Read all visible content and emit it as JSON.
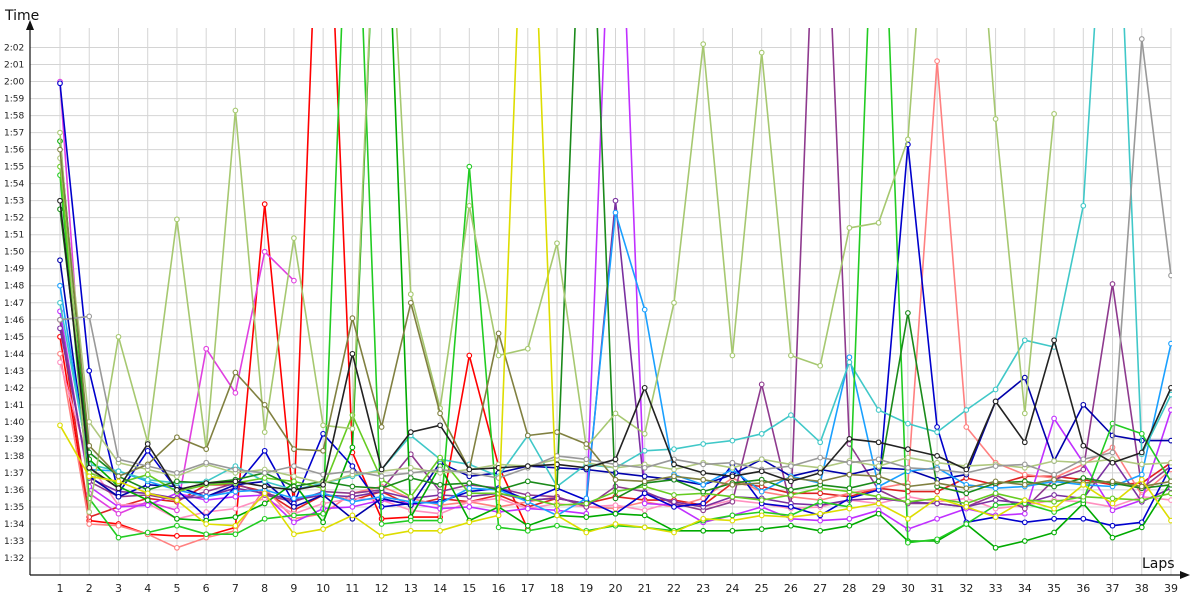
{
  "chart_data": {
    "type": "line",
    "xlabel": "Laps",
    "ylabel": "Time",
    "grid": true,
    "xlim": [
      1,
      39
    ],
    "ylim": [
      91,
      123.5
    ],
    "x_ticks": [
      "1",
      "2",
      "3",
      "4",
      "5",
      "6",
      "7",
      "8",
      "9",
      "10",
      "11",
      "12",
      "13",
      "14",
      "15",
      "16",
      "17",
      "18",
      "19",
      "20",
      "21",
      "22",
      "23",
      "24",
      "25",
      "26",
      "27",
      "28",
      "29",
      "30",
      "31",
      "32",
      "33",
      "34",
      "35",
      "36",
      "37",
      "38",
      "39"
    ],
    "y_ticks": [
      {
        "label": "1:32",
        "value": 92
      },
      {
        "label": "1:33",
        "value": 93
      },
      {
        "label": "1:34",
        "value": 94
      },
      {
        "label": "1:35",
        "value": 95
      },
      {
        "label": "1:36",
        "value": 96
      },
      {
        "label": "1:37",
        "value": 97
      },
      {
        "label": "1:38",
        "value": 98
      },
      {
        "label": "1:39",
        "value": 99
      },
      {
        "label": "1:40",
        "value": 100
      },
      {
        "label": "1:41",
        "value": 101
      },
      {
        "label": "1:42",
        "value": 102
      },
      {
        "label": "1:43",
        "value": 103
      },
      {
        "label": "1:44",
        "value": 104
      },
      {
        "label": "1:45",
        "value": 105
      },
      {
        "label": "1:46",
        "value": 106
      },
      {
        "label": "1:47",
        "value": 107
      },
      {
        "label": "1:48",
        "value": 108
      },
      {
        "label": "1:49",
        "value": 109
      },
      {
        "label": "1:50",
        "value": 110
      },
      {
        "label": "1:51",
        "value": 111
      },
      {
        "label": "1:52",
        "value": 112
      },
      {
        "label": "1:53",
        "value": 113
      },
      {
        "label": "1:54",
        "value": 114
      },
      {
        "label": "1:55",
        "value": 115
      },
      {
        "label": "1:56",
        "value": 116
      },
      {
        "label": "1:57",
        "value": 117
      },
      {
        "label": "1:58",
        "value": 118
      },
      {
        "label": "1:59",
        "value": 119
      },
      {
        "label": "2:00",
        "value": 120
      },
      {
        "label": "2:01",
        "value": 121
      },
      {
        "label": "2:02",
        "value": 122
      }
    ],
    "series": [
      {
        "color": "#ff0000",
        "values": [
          105.0,
          94.2,
          94.0,
          93.4,
          93.3,
          93.3,
          93.8,
          112.8,
          95.0,
          140,
          98.2,
          94.3,
          94.4,
          94.4,
          103.9,
          97.4,
          93.7,
          null,
          null,
          null,
          null,
          null,
          null,
          null,
          null,
          null,
          null,
          null,
          null,
          null,
          null,
          null,
          null,
          null,
          null,
          null,
          null,
          null,
          null
        ]
      },
      {
        "color": "#dd2222",
        "values": [
          106.0,
          94.4,
          95.0,
          95.5,
          95.3,
          96.3,
          96.3,
          95.9,
          94.8,
          95.7,
          95.4,
          95.9,
          95.1,
          95.5,
          95.3,
          95.7,
          95.0,
          95.5,
          95.2,
          95.6,
          95.4,
          95.4,
          95.1,
          96.4,
          96.2,
          95.8,
          95.8,
          95.6,
          96.1,
          95.9,
          95.9,
          96.7,
          96.3,
          96.8,
          96.8,
          96.6,
          96.3,
          96.4,
          97.6
        ]
      },
      {
        "color": "#ff8080",
        "values": [
          104.0,
          94.0,
          93.9,
          93.4,
          92.6,
          93.2,
          93.6,
          96.1,
          94.3,
          94.6,
          95.8,
          96.2,
          95.5,
          95.1,
          95.3,
          95.0,
          95.3,
          95.6,
          95.0,
          94.9,
          95.3,
          95.0,
          95.5,
          96.7,
          95.9,
          95.6,
          95.4,
          95.8,
          96.1,
          96.4,
          121.2,
          99.7,
          97.6,
          96.9,
          96.7,
          97.5,
          98.5,
          95.7,
          97.2
        ]
      },
      {
        "color": "#ff90c0",
        "values": [
          103.5,
          97.5,
          95.1,
          95.2,
          94.3,
          94.7,
          94.9,
          95.5,
          94.6,
          95.2,
          95.5,
          95.4,
          94.8,
          94.6,
          95.3,
          95.5,
          94.9,
          95.2,
          95.0,
          95.1,
          94.8,
          95.3,
          95.0,
          95.4,
          95.2,
          94.9,
          95.0,
          95.4,
          95.2,
          95.6,
          95.3,
          95.5,
          94.9,
          95.1,
          95.4,
          95.3,
          95.0,
          95.6,
          95.4
        ]
      },
      {
        "color": "#e040e0",
        "values": [
          120.0,
          95.8,
          94.6,
          95.3,
          94.8,
          104.3,
          101.7,
          110.0,
          108.3,
          null,
          null,
          null,
          null,
          null,
          null,
          null,
          null,
          null,
          null,
          null,
          null,
          null,
          null,
          null,
          null,
          null,
          null,
          null,
          null,
          null,
          null,
          null,
          null,
          null,
          null,
          null,
          null,
          null,
          null
        ]
      },
      {
        "color": "#c030ff",
        "values": [
          106.5,
          96.2,
          95.0,
          95.1,
          95.8,
          95.4,
          95.6,
          95.7,
          94.1,
          94.9,
          95.0,
          95.4,
          95.2,
          94.9,
          95.0,
          94.7,
          94.9,
          94.8,
          94.6,
          140,
          95.2,
          95.1,
          94.1,
          94.5,
          95.0,
          94.3,
          94.2,
          94.3,
          94.8,
          93.7,
          94.3,
          94.9,
          94.5,
          94.6,
          100.2,
          97.6,
          94.8,
          95.4,
          100.7
        ]
      },
      {
        "color": "#8e3a8e",
        "values": [
          106.0,
          96.5,
          95.6,
          95.7,
          95.4,
          95.9,
          96.4,
          95.7,
          95.3,
          95.9,
          95.8,
          96.0,
          98.1,
          95.9,
          96.3,
          96.1,
          95.7,
          95.6,
          95.0,
          96.2,
          95.9,
          95.2,
          94.8,
          95.3,
          102.2,
          95.0,
          140,
          98.7,
          96.0,
          95.2,
          95.2,
          95.0,
          95.7,
          94.9,
          96.6,
          97.2,
          108.1,
          96.1,
          97.4
        ]
      },
      {
        "color": "#7a30a0",
        "values": [
          105.5,
          96.7,
          95.9,
          95.8,
          95.5,
          95.6,
          96.1,
          95.8,
          95.4,
          95.7,
          95.6,
          95.9,
          95.5,
          95.7,
          95.6,
          95.8,
          95.4,
          95.5,
          95.2,
          113.0,
          95.8,
          95.3,
          95.0,
          95.6,
          95.5,
          95.2,
          95.1,
          95.4,
          95.5,
          95.3,
          95.2,
          95.0,
          95.4,
          95.2,
          95.7,
          95.5,
          97.8,
          95.3,
          96.1
        ]
      },
      {
        "color": "#0000cc",
        "values": [
          119.9,
          103.0,
          95.8,
          98.3,
          96.0,
          94.4,
          96.2,
          98.3,
          95.2,
          99.3,
          97.4,
          95.0,
          95.2,
          95.3,
          95.9,
          96.1,
          95.4,
          96.1,
          95.4,
          94.6,
          95.8,
          95.0,
          95.2,
          97.5,
          95.2,
          95.0,
          94.5,
          95.5,
          96.0,
          116.3,
          99.7,
          94.1,
          94.4,
          94.1,
          94.3,
          94.3,
          93.9,
          94.1,
          97.4
        ]
      },
      {
        "color": "#0000aa",
        "values": [
          109.5,
          96.8,
          95.6,
          96.3,
          96.2,
          95.6,
          96.3,
          96.5,
          95.0,
          95.7,
          94.3,
          95.5,
          95.1,
          97.6,
          96.8,
          97.0,
          97.4,
          97.3,
          97.2,
          97.0,
          96.8,
          96.6,
          96.3,
          96.9,
          97.8,
          96.8,
          97.2,
          96.9,
          97.3,
          97.2,
          96.6,
          96.9,
          101.2,
          102.6,
          97.7,
          101.0,
          99.2,
          98.9,
          98.9
        ]
      },
      {
        "color": "#1aa0ff",
        "values": [
          108.0,
          97.2,
          97.1,
          96.5,
          96.0,
          95.6,
          95.9,
          96.0,
          95.5,
          95.8,
          95.3,
          95.6,
          95.3,
          95.2,
          96.1,
          96.0,
          95.3,
          94.5,
          95.5,
          112.3,
          106.6,
          96.9,
          96.3,
          97.2,
          95.9,
          96.8,
          96.4,
          103.8,
          96.2,
          97.1,
          97.3,
          96.3,
          96.1,
          96.2,
          96.5,
          96.3,
          96.2,
          96.9,
          104.6
        ]
      },
      {
        "color": "#40c8c8",
        "values": [
          107.0,
          97.5,
          97.1,
          96.6,
          96.4,
          96.5,
          97.4,
          96.5,
          96.0,
          96.4,
          96.8,
          97.2,
          99.2,
          97.8,
          97.5,
          96.8,
          99.2,
          96.2,
          97.5,
          97.3,
          98.3,
          98.4,
          98.7,
          98.9,
          99.3,
          100.4,
          98.8,
          103.5,
          100.7,
          99.9,
          99.4,
          100.7,
          101.9,
          104.8,
          104.4,
          112.7,
          140,
          98.1,
          101.6
        ]
      },
      {
        "color": "#00aa00",
        "values": [
          116.5,
          97.8,
          96.2,
          95.4,
          94.3,
          94.2,
          94.4,
          95.2,
          96.4,
          94.1,
          98.5,
          140,
          94.4,
          97.4,
          94.2,
          95.0,
          93.9,
          94.5,
          94.4,
          94.6,
          94.5,
          93.6,
          93.6,
          93.6,
          93.7,
          93.9,
          93.6,
          93.9,
          94.6,
          93.0,
          93.0,
          94.0,
          92.6,
          93.0,
          93.5,
          95.2,
          93.2,
          93.8,
          96.5
        ]
      },
      {
        "color": "#22cc22",
        "values": [
          114.5,
          95.5,
          93.2,
          93.5,
          93.9,
          93.4,
          93.4,
          94.3,
          94.5,
          94.6,
          140,
          94.0,
          94.2,
          94.2,
          115.0,
          93.8,
          93.6,
          93.9,
          93.6,
          93.9,
          93.8,
          93.6,
          94.2,
          94.5,
          94.7,
          94.5,
          95.3,
          95.0,
          140,
          92.9,
          93.1,
          94.0,
          95.1,
          95.2,
          94.7,
          95.4,
          99.9,
          99.3,
          96.5
        ]
      },
      {
        "color": "#66cc22",
        "values": [
          115.0,
          97.0,
          96.4,
          96.9,
          95.9,
          96.3,
          96.4,
          96.7,
          96.5,
          96.1,
          100.4,
          96.6,
          95.6,
          97.9,
          95.8,
          95.8,
          95.5,
          95.1,
          95.2,
          95.9,
          96.2,
          95.7,
          95.8,
          95.6,
          95.4,
          95.7,
          96.1,
          95.9,
          95.6,
          95.3,
          95.5,
          95.2,
          95.8,
          95.4,
          95.3,
          95.6,
          95.5,
          95.4,
          95.8
        ]
      },
      {
        "color": "#1a8a1a",
        "values": [
          112.5,
          98.2,
          96.8,
          96.0,
          96.5,
          96.4,
          96.6,
          97.0,
          96.2,
          96.5,
          96.2,
          96.1,
          96.7,
          96.3,
          96.4,
          96.0,
          96.5,
          96.2,
          140,
          95.5,
          96.4,
          96.6,
          95.9,
          96.4,
          96.6,
          96.0,
          96.3,
          96.1,
          96.5,
          106.4,
          96.2,
          95.8,
          96.4,
          96.5,
          96.2,
          96.7,
          96.4,
          96.1,
          96.3
        ]
      },
      {
        "color": "#a6c870",
        "values": [
          117.0,
          94.7,
          105.0,
          98.8,
          111.9,
          98.4,
          118.3,
          99.4,
          110.8,
          99.8,
          99.6,
          140,
          107.5,
          100.8,
          112.7,
          103.9,
          104.3,
          110.5,
          98.5,
          100.5,
          99.3,
          107.0,
          122.2,
          103.9,
          121.7,
          103.9,
          103.3,
          111.4,
          111.7,
          116.6,
          140,
          140,
          117.8,
          100.5,
          118.1,
          null,
          null,
          null,
          null
        ]
      },
      {
        "color": "#b0c880",
        "values": [
          115.5,
          100.0,
          97.6,
          97.2,
          96.8,
          97.5,
          97.0,
          97.2,
          96.8,
          96.4,
          96.9,
          97.1,
          97.3,
          97.0,
          97.2,
          97.5,
          97.4,
          97.8,
          97.6,
          97.3,
          97.5,
          97.2,
          97.6,
          97.3,
          97.8,
          97.5,
          97.3,
          97.7,
          97.4,
          97.9,
          97.6,
          97.4,
          97.5,
          97.3,
          97.7,
          97.6,
          97.8,
          97.5,
          97.6
        ]
      },
      {
        "color": "#808040",
        "values": [
          116.0,
          98.6,
          96.8,
          97.5,
          99.1,
          98.4,
          102.9,
          101.0,
          98.4,
          98.3,
          106.1,
          99.7,
          107.0,
          100.5,
          97.2,
          105.2,
          99.2,
          99.4,
          98.7,
          96.6,
          96.5,
          96.8,
          96.6,
          96.3,
          96.4,
          96.7,
          96.5,
          96.9,
          96.8,
          96.2,
          96.4,
          96.1,
          96.5,
          96.3,
          96.6,
          96.4,
          96.5,
          96.2,
          96.5
        ]
      },
      {
        "color": "#999999",
        "values": [
          106.0,
          106.2,
          97.8,
          97.4,
          97.0,
          97.6,
          97.2,
          97.0,
          97.4,
          96.9,
          97.1,
          96.8,
          97.0,
          97.2,
          97.0,
          96.7,
          97.3,
          98.0,
          97.8,
          97.5,
          97.3,
          97.8,
          97.5,
          97.6,
          97.2,
          97.4,
          97.9,
          97.6,
          97.8,
          97.3,
          97.2,
          97.0,
          97.4,
          97.5,
          96.9,
          97.8,
          98.2,
          122.5,
          108.6
        ]
      },
      {
        "color": "#222222",
        "values": [
          113.0,
          97.3,
          96.1,
          98.7,
          96.0,
          96.4,
          96.5,
          96.2,
          96.0,
          96.3,
          104.0,
          97.2,
          99.4,
          99.8,
          97.2,
          97.3,
          97.4,
          97.5,
          97.3,
          97.8,
          102.0,
          97.5,
          97.0,
          96.8,
          97.1,
          96.5,
          97.0,
          99.0,
          98.8,
          98.4,
          98.0,
          97.2,
          101.2,
          98.8,
          104.8,
          98.6,
          97.6,
          98.2,
          102.0
        ]
      },
      {
        "color": "#dddd00",
        "values": [
          99.8,
          96.8,
          96.5,
          95.8,
          95.4,
          94.0,
          93.9,
          95.8,
          93.4,
          93.7,
          94.5,
          93.3,
          93.6,
          93.6,
          94.1,
          94.5,
          140,
          94.5,
          93.5,
          94.0,
          93.8,
          93.5,
          94.3,
          94.2,
          94.5,
          94.4,
          94.6,
          94.9,
          95.2,
          94.3,
          95.5,
          95.0,
          94.4,
          95.4,
          94.9,
          96.3,
          95.2,
          96.6,
          94.2
        ]
      }
    ]
  }
}
